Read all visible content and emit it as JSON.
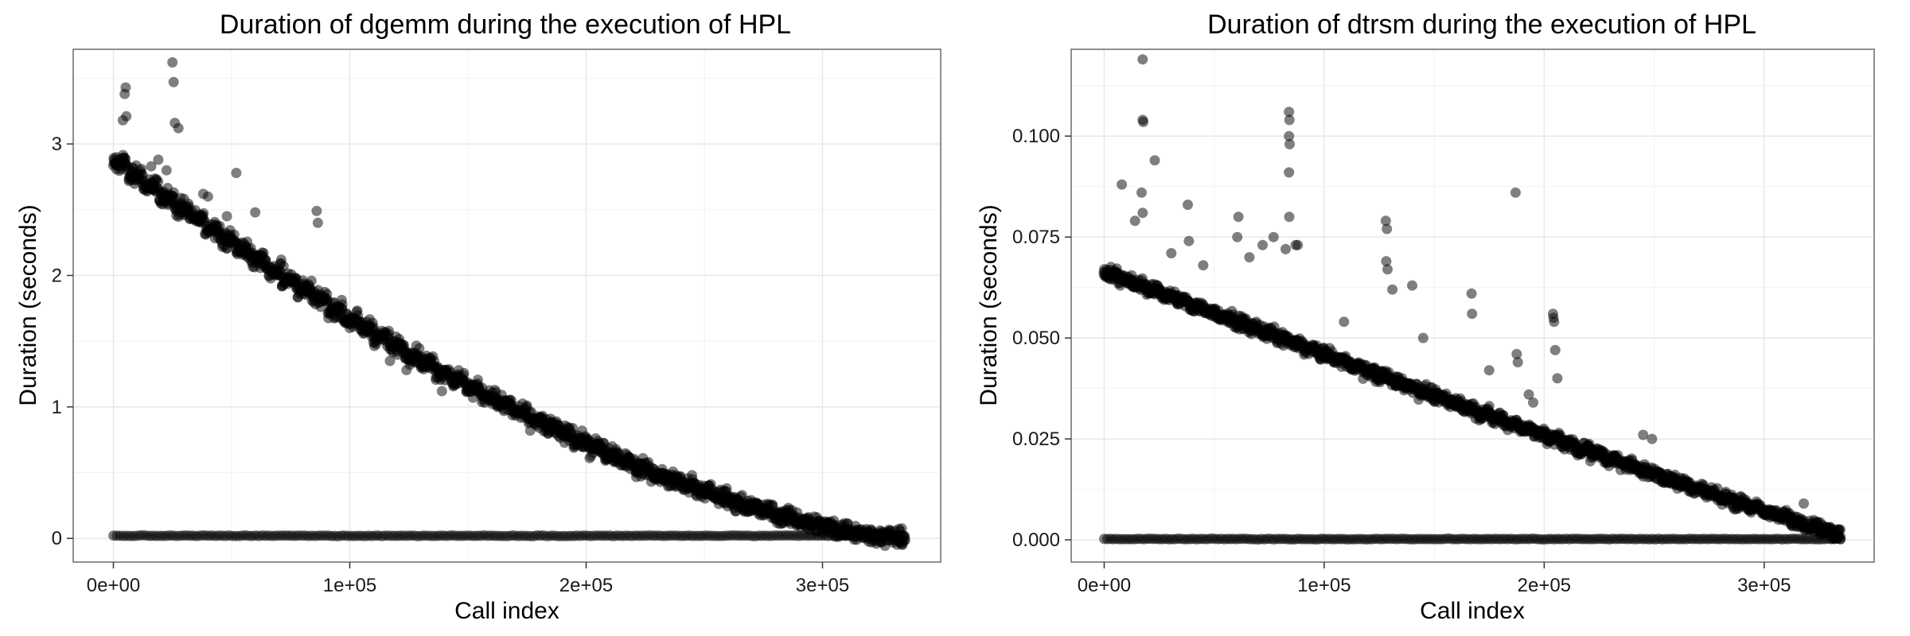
{
  "chart_data": [
    {
      "type": "scatter",
      "title": "Duration of dgemm during the execution of HPL",
      "xlabel": "Call index",
      "ylabel": "Duration (seconds)",
      "xlim": [
        -17000,
        350000
      ],
      "ylim": [
        -0.18,
        3.72
      ],
      "x_ticks": [
        0,
        100000,
        200000,
        300000
      ],
      "x_tick_labels": [
        "0e+00",
        "1e+05",
        "2e+05",
        "3e+05"
      ],
      "y_ticks": [
        0,
        1,
        2,
        3
      ],
      "y_tick_labels": [
        "0",
        "1",
        "2",
        "3"
      ],
      "grid": true,
      "point_color": "#000000",
      "point_alpha": 0.5,
      "trend": {
        "x_start": 0,
        "x_end": 335000,
        "y_start": 2.85,
        "y_end": 0.0,
        "shape_exponent": 1.55,
        "step_width": 6500,
        "band_half_height": 0.09
      },
      "baseline": {
        "x_start": 0,
        "x_end": 335000,
        "y": 0.02
      },
      "outliers": [
        [
          25000,
          3.62
        ],
        [
          25500,
          3.47
        ],
        [
          5200,
          3.43
        ],
        [
          4800,
          3.38
        ],
        [
          26000,
          3.16
        ],
        [
          27500,
          3.12
        ],
        [
          5500,
          3.21
        ],
        [
          4000,
          3.18
        ],
        [
          19000,
          2.88
        ],
        [
          16000,
          2.83
        ],
        [
          22500,
          2.8
        ],
        [
          52000,
          2.78
        ],
        [
          38000,
          2.62
        ],
        [
          40000,
          2.6
        ],
        [
          48000,
          2.45
        ],
        [
          60000,
          2.48
        ],
        [
          86000,
          2.49
        ],
        [
          86500,
          2.4
        ],
        [
          71000,
          2.12
        ],
        [
          72000,
          2.07
        ],
        [
          75000,
          1.95
        ],
        [
          84000,
          1.81
        ],
        [
          89000,
          1.82
        ],
        [
          100000,
          1.6
        ],
        [
          110000,
          1.49
        ],
        [
          117000,
          1.35
        ],
        [
          124000,
          1.28
        ],
        [
          139000,
          1.12
        ],
        [
          185000,
          0.91
        ],
        [
          186000,
          0.83
        ],
        [
          187000,
          0.8
        ],
        [
          204000,
          0.76
        ],
        [
          205000,
          0.74
        ],
        [
          206000,
          0.66
        ],
        [
          211000,
          0.7
        ],
        [
          211500,
          0.64
        ],
        [
          212000,
          0.58
        ]
      ]
    },
    {
      "type": "scatter",
      "title": "Duration of dtrsm during the execution of HPL",
      "xlabel": "Call index",
      "ylabel": "Duration (seconds)",
      "xlim": [
        -15000,
        350000
      ],
      "ylim": [
        -0.0055,
        0.1215
      ],
      "x_ticks": [
        0,
        100000,
        200000,
        300000
      ],
      "x_tick_labels": [
        "0e+00",
        "1e+05",
        "2e+05",
        "3e+05"
      ],
      "y_ticks": [
        0,
        0.025,
        0.05,
        0.075,
        0.1
      ],
      "y_tick_labels": [
        "0.000",
        "0.025",
        "0.050",
        "0.075",
        "0.100"
      ],
      "grid": true,
      "point_color": "#000000",
      "point_alpha": 0.5,
      "trend": {
        "x_start": 0,
        "x_end": 335000,
        "y_start": 0.066,
        "y_end": 0.001,
        "shape_exponent": 1.08,
        "step_width": 6500,
        "band_half_height": 0.0022
      },
      "baseline": {
        "x_start": 0,
        "x_end": 335000,
        "y": 0.0002
      },
      "outliers": [
        [
          17500,
          0.119
        ],
        [
          17500,
          0.104
        ],
        [
          17800,
          0.1035
        ],
        [
          23000,
          0.094
        ],
        [
          8000,
          0.088
        ],
        [
          17000,
          0.086
        ],
        [
          14000,
          0.079
        ],
        [
          17500,
          0.081
        ],
        [
          38000,
          0.083
        ],
        [
          38500,
          0.074
        ],
        [
          30500,
          0.071
        ],
        [
          45000,
          0.068
        ],
        [
          61000,
          0.08
        ],
        [
          60500,
          0.075
        ],
        [
          66000,
          0.07
        ],
        [
          72000,
          0.073
        ],
        [
          77000,
          0.075
        ],
        [
          82500,
          0.072
        ],
        [
          84000,
          0.106
        ],
        [
          84200,
          0.104
        ],
        [
          84000,
          0.1
        ],
        [
          84300,
          0.098
        ],
        [
          84000,
          0.091
        ],
        [
          84100,
          0.08
        ],
        [
          87000,
          0.073
        ],
        [
          88000,
          0.073
        ],
        [
          109000,
          0.054
        ],
        [
          128000,
          0.079
        ],
        [
          128500,
          0.077
        ],
        [
          128200,
          0.069
        ],
        [
          128800,
          0.067
        ],
        [
          131000,
          0.062
        ],
        [
          140000,
          0.063
        ],
        [
          145000,
          0.05
        ],
        [
          167000,
          0.061
        ],
        [
          167200,
          0.056
        ],
        [
          175000,
          0.042
        ],
        [
          187000,
          0.086
        ],
        [
          187500,
          0.046
        ],
        [
          188000,
          0.044
        ],
        [
          193000,
          0.036
        ],
        [
          195000,
          0.034
        ],
        [
          204000,
          0.056
        ],
        [
          204200,
          0.055
        ],
        [
          204500,
          0.054
        ],
        [
          205000,
          0.047
        ],
        [
          206000,
          0.04
        ],
        [
          245000,
          0.026
        ],
        [
          249000,
          0.025
        ],
        [
          318000,
          0.009
        ]
      ]
    }
  ]
}
